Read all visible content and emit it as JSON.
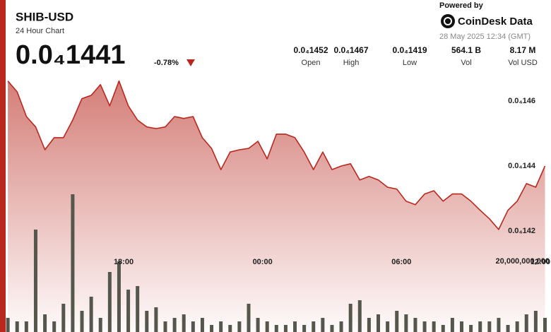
{
  "chart_data": {
    "type": "area",
    "title": "SHIB-USD",
    "subtitle": "24 Hour Chart",
    "price": "0.0₄1441",
    "change": "-0.78%",
    "powered_by": "Powered by",
    "brand": "CoinDesk Data",
    "timestamp": "28 May 2025 12:34 (GMT)",
    "stats": [
      {
        "value": "0.0₄1452",
        "label": "Open"
      },
      {
        "value": "0.0₄1467",
        "label": "High"
      },
      {
        "value": "0.0₄1419",
        "label": "Low"
      },
      {
        "value": "564.1 B",
        "label": "Vol"
      },
      {
        "value": "8.17 M",
        "label": "Vol USD"
      }
    ],
    "x": [
      13,
      13.4,
      13.8,
      14.2,
      14.6,
      15,
      15.4,
      15.8,
      16.2,
      16.6,
      17,
      17.4,
      17.8,
      18.2,
      18.6,
      19,
      19.4,
      19.8,
      20.2,
      20.6,
      21,
      21.4,
      21.8,
      22.2,
      22.6,
      23,
      23.4,
      23.8,
      24.2,
      24.6,
      25,
      25.4,
      25.8,
      26.2,
      26.6,
      27,
      27.4,
      27.8,
      28.2,
      28.6,
      29,
      29.4,
      29.8,
      30.2,
      30.6,
      31,
      31.4,
      31.8,
      32.2,
      32.6,
      33,
      33.4,
      33.8,
      34.2,
      34.6,
      35,
      35.4,
      35.8,
      36.2
    ],
    "xlim": [
      12.66,
      36.46
    ],
    "xticks": [
      {
        "value": 18,
        "label": "18:00"
      },
      {
        "value": 24,
        "label": "00:00"
      },
      {
        "value": 30,
        "label": "06:00"
      },
      {
        "value": 36,
        "label": "12:00"
      }
    ],
    "ylim": [
      1.389e-05,
      1.4693e-05
    ],
    "yticks": [
      {
        "value": 1.46e-05,
        "label": "0.0₄146"
      },
      {
        "value": 1.44e-05,
        "label": "0.0₄144"
      },
      {
        "value": 1.42e-05,
        "label": "0.0₄142"
      }
    ],
    "y2lim": [
      0,
      74000000000
    ],
    "y2ticks": [
      {
        "value": 20000000000,
        "label": "20,000,000,000"
      }
    ],
    "grid": false,
    "series": [
      {
        "color": "#b8281e",
        "values": [
          1.4661e-05,
          1.4628e-05,
          1.4552e-05,
          1.452e-05,
          1.445e-05,
          1.4487e-05,
          1.4487e-05,
          1.4541e-05,
          1.4607e-05,
          1.4617e-05,
          1.465e-05,
          1.4585e-05,
          1.4661e-05,
          1.4585e-05,
          1.4541e-05,
          1.452e-05,
          1.4515e-05,
          1.452e-05,
          1.4552e-05,
          1.4546e-05,
          1.4552e-05,
          1.4487e-05,
          1.4454e-05,
          1.4389e-05,
          1.4443e-05,
          1.445e-05,
          1.4454e-05,
          1.4476e-05,
          1.4422e-05,
          1.4498e-05,
          1.4498e-05,
          1.4487e-05,
          1.4443e-05,
          1.4389e-05,
          1.4443e-05,
          1.4389e-05,
          1.44e-05,
          1.4407e-05,
          1.4357e-05,
          1.4368e-05,
          1.4357e-05,
          1.4335e-05,
          1.4329e-05,
          1.4292e-05,
          1.4281e-05,
          1.4314e-05,
          1.4324e-05,
          1.4292e-05,
          1.4314e-05,
          1.4314e-05,
          1.4292e-05,
          1.4264e-05,
          1.4238e-05,
          1.4205e-05,
          1.4264e-05,
          1.4292e-05,
          1.4346e-05,
          1.4335e-05,
          1.44e-05
        ]
      },
      {
        "type": "bar",
        "axis": "y2",
        "color": "#55574c",
        "values": [
          4000000000,
          3000000000,
          3000000000,
          29000000000,
          5000000000,
          3000000000,
          8000000000,
          39000000000,
          6000000000,
          10000000000,
          4000000000,
          17000000000,
          20000000000,
          12000000000,
          13000000000,
          6000000000,
          7000000000,
          3000000000,
          4000000000,
          5000000000,
          3000000000,
          4000000000,
          2000000000,
          3000000000,
          2000000000,
          3000000000,
          8000000000,
          4000000000,
          3000000000,
          2000000000,
          2000000000,
          3000000000,
          2000000000,
          3000000000,
          4000000000,
          2000000000,
          3000000000,
          8000000000,
          9000000000,
          4000000000,
          5000000000,
          3000000000,
          6000000000,
          5000000000,
          4000000000,
          3000000000,
          3000000000,
          2000000000,
          4000000000,
          3000000000,
          2000000000,
          3000000000,
          3000000000,
          4000000000,
          2000000000,
          3000000000,
          5000000000,
          6000000000,
          4000000000
        ]
      }
    ]
  }
}
